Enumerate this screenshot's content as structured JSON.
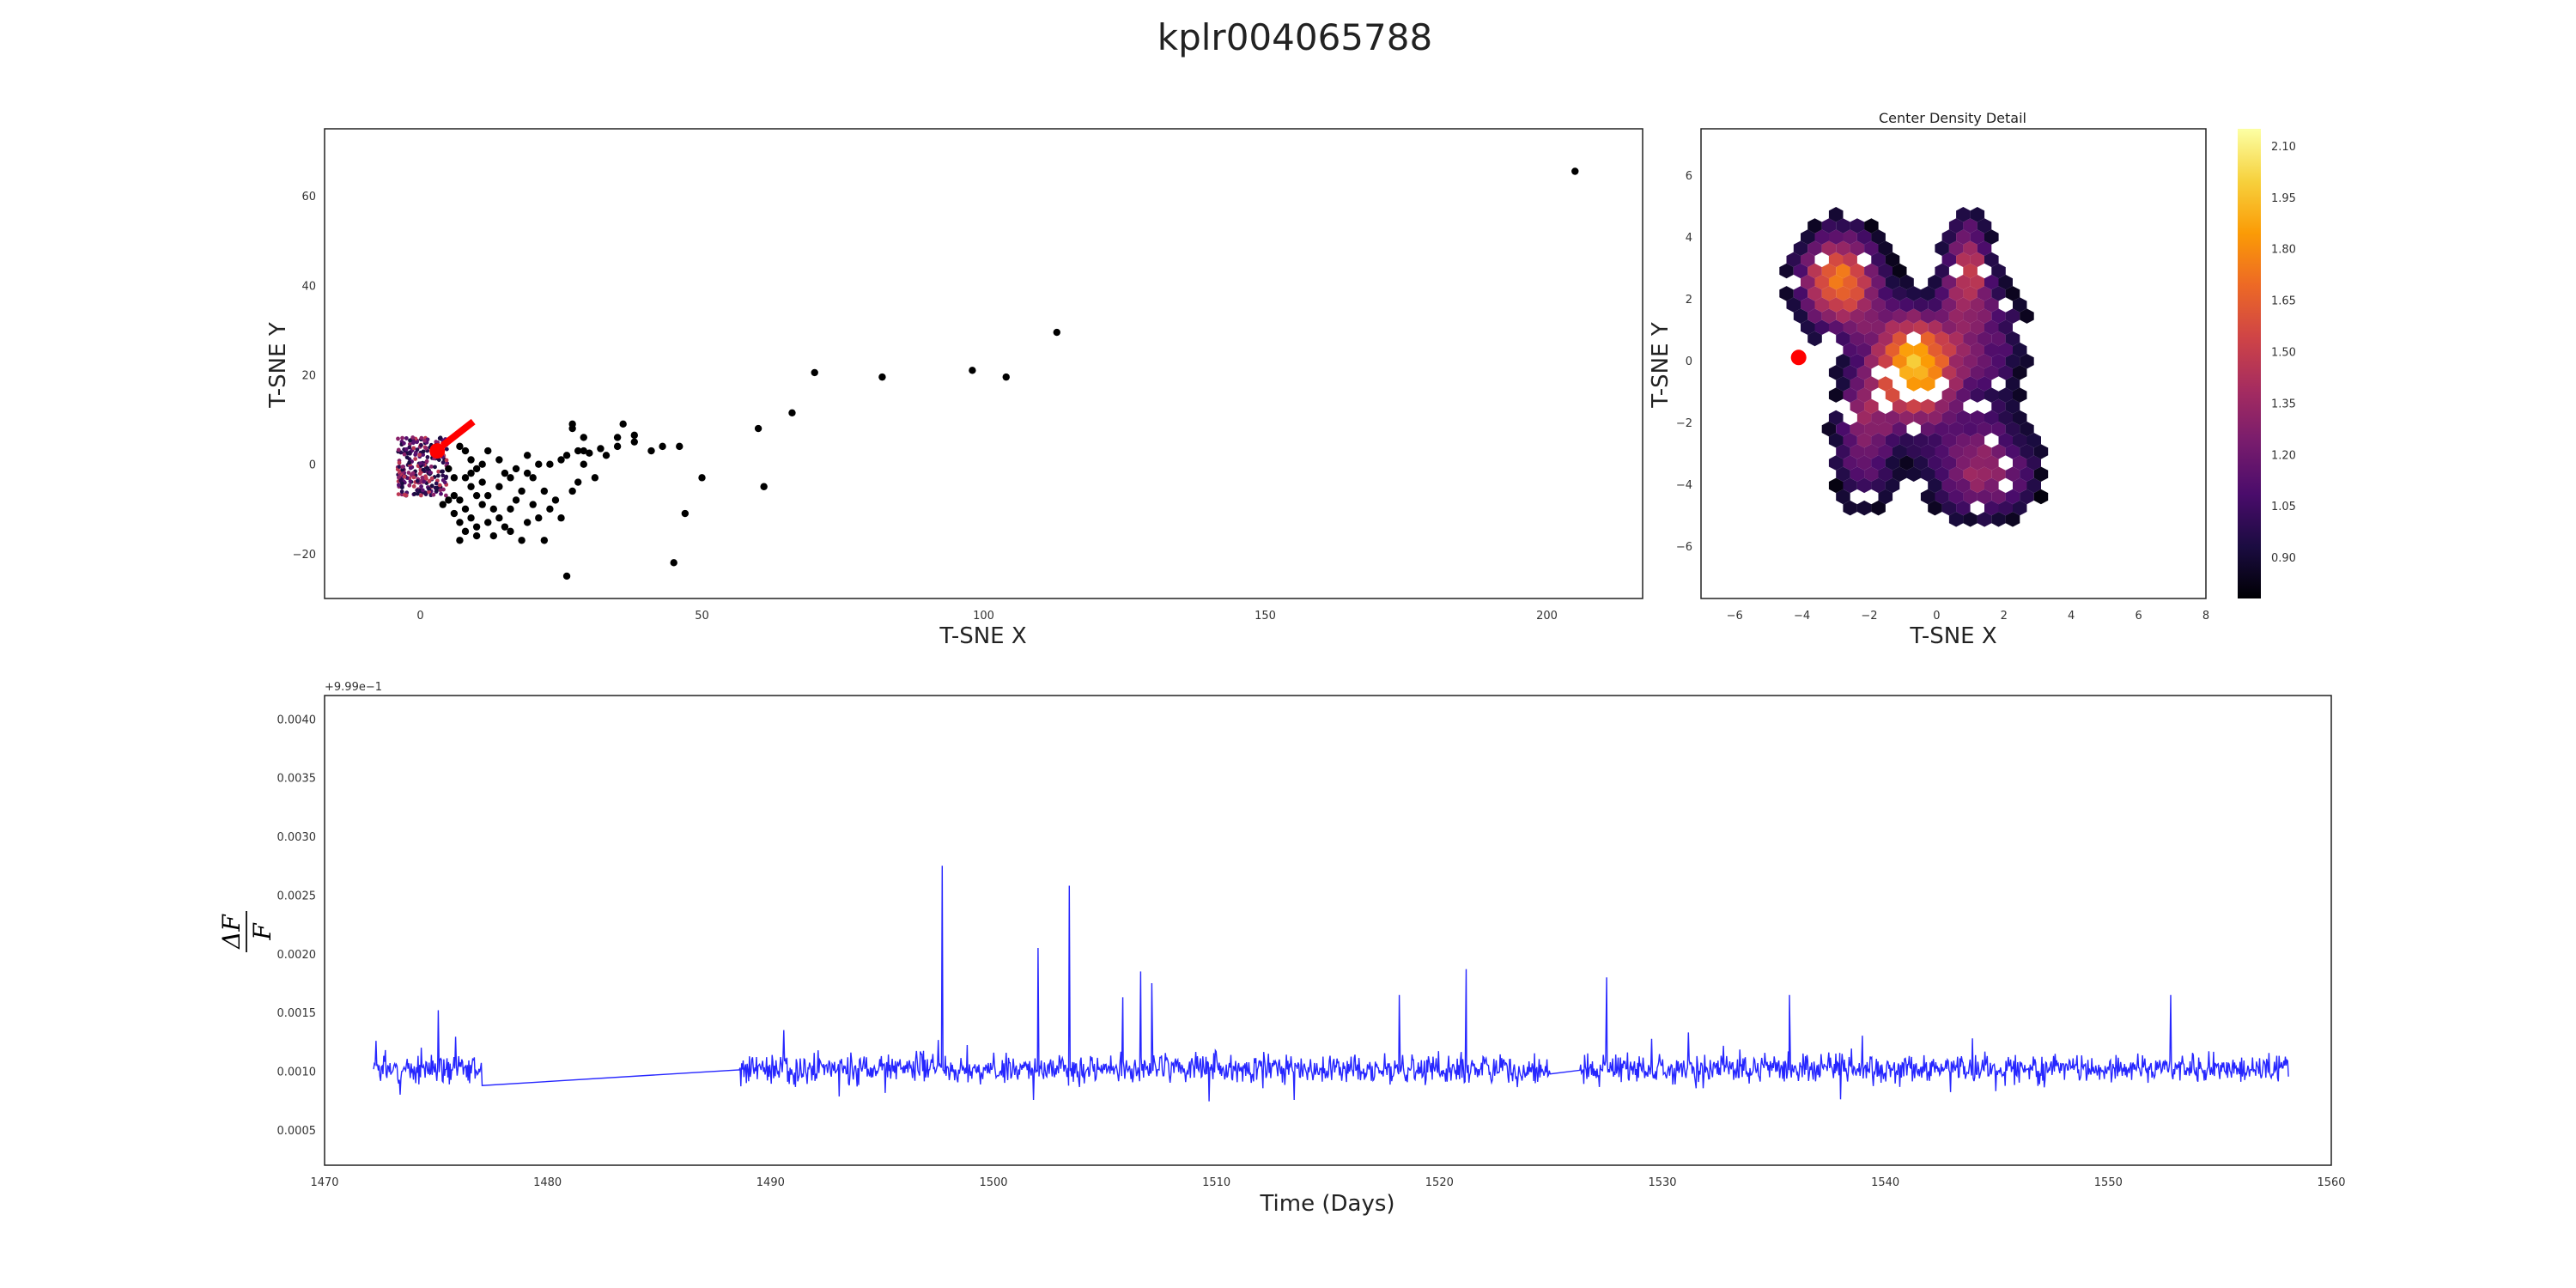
{
  "figure": {
    "title": "kplr004065788"
  },
  "chart_data": [
    {
      "name": "tsne-scatter",
      "type": "scatter",
      "title": "",
      "xlabel": "T-SNE X",
      "ylabel": "T-SNE Y",
      "xlim": [
        -17,
        217
      ],
      "ylim": [
        -30,
        75
      ],
      "xticks": [
        0,
        50,
        100,
        150,
        200
      ],
      "yticks": [
        -20,
        0,
        20,
        40,
        60
      ],
      "grid": false,
      "marker_color": "#000000",
      "points": [
        [
          205,
          65.5
        ],
        [
          113,
          29.5
        ],
        [
          104,
          19.5
        ],
        [
          98,
          21
        ],
        [
          82,
          19.5
        ],
        [
          70,
          20.5
        ],
        [
          66,
          11.5
        ],
        [
          60,
          8
        ],
        [
          61,
          -5
        ],
        [
          50,
          -3
        ],
        [
          47,
          -11
        ],
        [
          45,
          -22
        ],
        [
          46,
          4
        ],
        [
          43,
          4
        ],
        [
          41,
          3
        ],
        [
          38,
          5
        ],
        [
          38,
          6.5
        ],
        [
          36,
          9
        ],
        [
          35,
          6
        ],
        [
          35,
          4
        ],
        [
          32,
          3.5
        ],
        [
          29,
          3
        ],
        [
          30,
          2.5
        ],
        [
          28,
          3
        ],
        [
          29,
          6
        ],
        [
          27,
          8
        ],
        [
          27,
          9
        ],
        [
          26,
          2
        ],
        [
          25,
          1
        ],
        [
          23,
          0
        ],
        [
          21,
          0
        ],
        [
          19,
          2
        ],
        [
          17,
          -1
        ],
        [
          16,
          -3
        ],
        [
          15,
          -2
        ],
        [
          14,
          1
        ],
        [
          12,
          3
        ],
        [
          11,
          0
        ],
        [
          10,
          -1
        ],
        [
          9,
          1
        ],
        [
          8,
          3
        ],
        [
          7,
          4
        ],
        [
          8,
          -3
        ],
        [
          9,
          -5
        ],
        [
          10,
          -7
        ],
        [
          11,
          -9
        ],
        [
          13,
          -10
        ],
        [
          14,
          -12
        ],
        [
          12,
          -13
        ],
        [
          10,
          -14
        ],
        [
          9,
          -12
        ],
        [
          8,
          -10
        ],
        [
          7,
          -8
        ],
        [
          6,
          -7
        ],
        [
          5,
          -8
        ],
        [
          4,
          -9
        ],
        [
          6,
          -11
        ],
        [
          7,
          -13
        ],
        [
          8,
          -15
        ],
        [
          7,
          -17
        ],
        [
          10,
          -16
        ],
        [
          13,
          -16
        ],
        [
          15,
          -14
        ],
        [
          16,
          -15
        ],
        [
          18,
          -17
        ],
        [
          19,
          -13
        ],
        [
          21,
          -12
        ],
        [
          22,
          -17
        ],
        [
          26,
          -25
        ],
        [
          28,
          -4
        ],
        [
          27,
          -6
        ],
        [
          19,
          -2
        ],
        [
          20,
          -3
        ],
        [
          22,
          -6
        ],
        [
          23,
          -10
        ],
        [
          24,
          -8
        ],
        [
          25,
          -12
        ],
        [
          18,
          -6
        ],
        [
          17,
          -8
        ],
        [
          11,
          -4
        ],
        [
          9,
          -2
        ],
        [
          6,
          -3
        ],
        [
          5,
          -1
        ],
        [
          12,
          -7
        ],
        [
          14,
          -5
        ],
        [
          16,
          -10
        ],
        [
          20,
          -9
        ],
        [
          29,
          0
        ],
        [
          33,
          2
        ],
        [
          31,
          -3
        ]
      ],
      "highlight_point": [
        3,
        3
      ],
      "highlight_color": "#ff0000"
    },
    {
      "name": "center-density-detail",
      "type": "heatmap",
      "title": "Center Density Detail",
      "xlabel": "T-SNE X",
      "ylabel": "T-SNE Y",
      "xlim": [
        -7,
        8
      ],
      "ylim": [
        -7.7,
        7.5
      ],
      "xticks": [
        -6,
        -4,
        -2,
        0,
        2,
        4,
        6,
        8
      ],
      "yticks": [
        -6,
        -4,
        -2,
        0,
        2,
        4,
        6
      ],
      "colormap": "inferno",
      "colorbar": {
        "min": 0.78,
        "max": 2.15,
        "ticks": [
          "0.90",
          "1.05",
          "1.20",
          "1.35",
          "1.50",
          "1.65",
          "1.80",
          "1.95",
          "2.10"
        ]
      },
      "marker_point": [
        -4.1,
        0.1
      ],
      "marker_color": "#ff0000"
    },
    {
      "name": "light-curve",
      "type": "line",
      "title": "",
      "xlabel": "Time (Days)",
      "ylabel": "ΔF/F",
      "offset_text": "+9.99e−1",
      "xlim": [
        1470,
        1560
      ],
      "ylim": [
        0.0002,
        0.0042
      ],
      "xticks": [
        1470,
        1480,
        1490,
        1500,
        1510,
        1520,
        1530,
        1540,
        1550,
        1560
      ],
      "yticks": [
        "0.0005",
        "0.0010",
        "0.0015",
        "0.0020",
        "0.0025",
        "0.0030",
        "0.0035",
        "0.0040"
      ],
      "series_color": "#0000ff",
      "segments": [
        {
          "start": 1472.2,
          "end": 1477.1
        },
        {
          "start": 1488.6,
          "end": 1525.0
        },
        {
          "start": 1526.3,
          "end": 1558.1
        }
      ],
      "baseline": 0.00102,
      "noise_amplitude": 0.00018,
      "spikes": [
        {
          "x": 1497.7,
          "y": 0.00275
        },
        {
          "x": 1503.4,
          "y": 0.00258
        },
        {
          "x": 1502.0,
          "y": 0.00205
        },
        {
          "x": 1521.2,
          "y": 0.00187
        },
        {
          "x": 1506.6,
          "y": 0.00185
        },
        {
          "x": 1527.5,
          "y": 0.0018
        },
        {
          "x": 1507.1,
          "y": 0.00175
        },
        {
          "x": 1505.8,
          "y": 0.00163
        },
        {
          "x": 1518.2,
          "y": 0.00165
        },
        {
          "x": 1535.7,
          "y": 0.00165
        },
        {
          "x": 1552.8,
          "y": 0.00165
        },
        {
          "x": 1475.1,
          "y": 0.00152
        }
      ]
    }
  ]
}
